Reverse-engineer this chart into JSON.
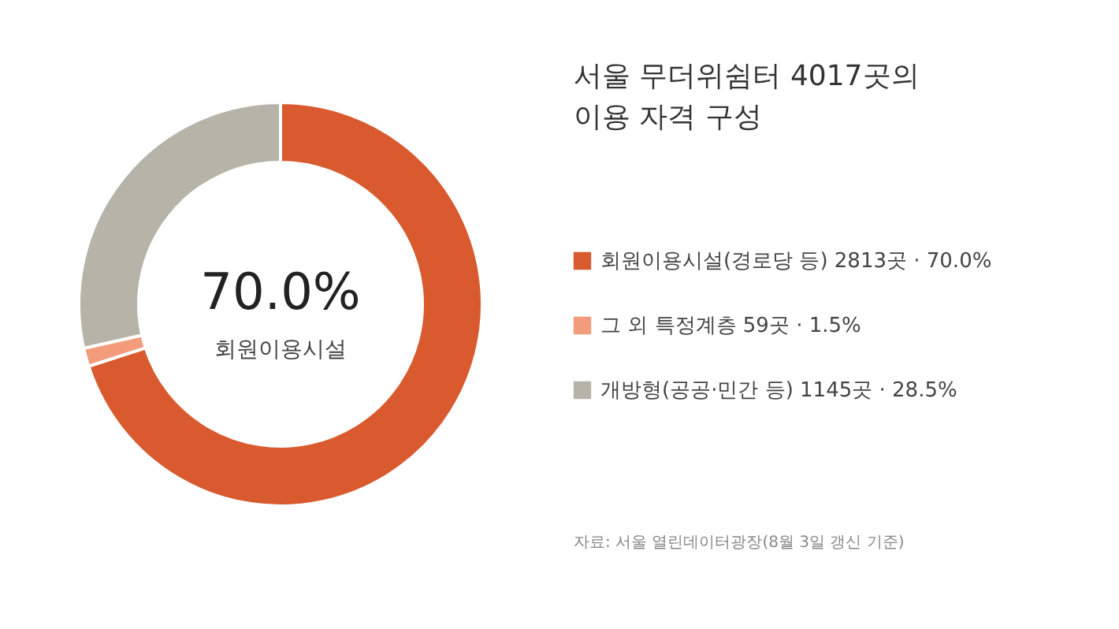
{
  "chart_data": {
    "type": "donut",
    "title": "서울 무더위쉼터 4017곳의\n이용 자격 구성",
    "categories": [
      "회원이용시설(경로당 등) 2813곳 · 70.0%",
      "그 외 특정계층 59곳 · 1.5%",
      "개방형(공공·민간 등) 1145곳 · 28.5%"
    ],
    "values": [
      2813,
      59,
      1145
    ],
    "colors": [
      "#d85a2e",
      "#f29c7c",
      "#b6b4a8"
    ],
    "legend": "right",
    "annotations": [
      "70.0%",
      "회원이용시설",
      "자료: 서울 열린데이터광장(8월 3일 갱신 기준)"
    ]
  }
}
